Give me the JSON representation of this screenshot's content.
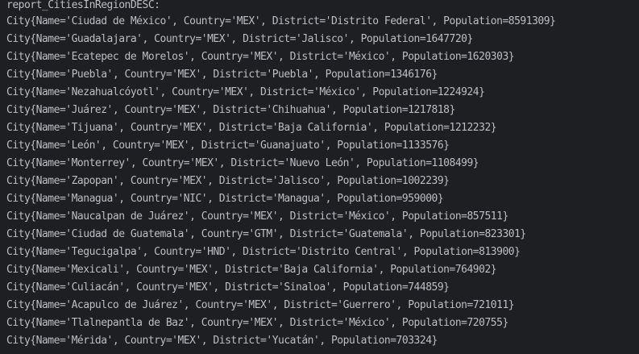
{
  "console": {
    "header": "report_CitiesInRegionDESC:",
    "lines": [
      "City{Name='Ciudad de México', Country='MEX', District='Distrito Federal', Population=8591309}",
      "City{Name='Guadalajara', Country='MEX', District='Jalisco', Population=1647720}",
      "City{Name='Ecatepec de Morelos', Country='MEX', District='México', Population=1620303}",
      "City{Name='Puebla', Country='MEX', District='Puebla', Population=1346176}",
      "City{Name='Nezahualcóyotl', Country='MEX', District='México', Population=1224924}",
      "City{Name='Juárez', Country='MEX', District='Chihuahua', Population=1217818}",
      "City{Name='Tijuana', Country='MEX', District='Baja California', Population=1212232}",
      "City{Name='León', Country='MEX', District='Guanajuato', Population=1133576}",
      "City{Name='Monterrey', Country='MEX', District='Nuevo León', Population=1108499}",
      "City{Name='Zapopan', Country='MEX', District='Jalisco', Population=1002239}",
      "City{Name='Managua', Country='NIC', District='Managua', Population=959000}",
      "City{Name='Naucalpan de Juárez', Country='MEX', District='México', Population=857511}",
      "City{Name='Ciudad de Guatemala', Country='GTM', District='Guatemala', Population=823301}",
      "City{Name='Tegucigalpa', Country='HND', District='Distrito Central', Population=813900}",
      "City{Name='Mexicali', Country='MEX', District='Baja California', Population=764902}",
      "City{Name='Culiacán', Country='MEX', District='Sinaloa', Population=744859}",
      "City{Name='Acapulco de Juárez', Country='MEX', District='Guerrero', Population=721011}",
      "City{Name='Tlalnepantla de Baz', Country='MEX', District='México', Population=720755}",
      "City{Name='Mérida', Country='MEX', District='Yucatán', Population=703324}"
    ]
  }
}
